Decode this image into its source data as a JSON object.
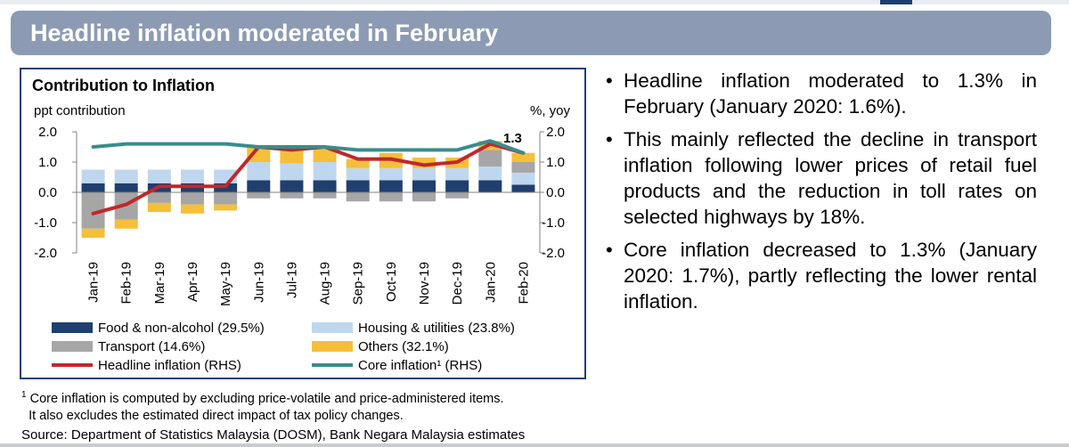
{
  "slide": {
    "title": "Headline inflation moderated in February"
  },
  "chart_data": {
    "type": "bar",
    "title": "Contribution to Inflation",
    "ylabel_left": "ppt contribution",
    "ylabel_right": "%, yoy",
    "ylim": [
      -2.0,
      2.0
    ],
    "y_ticks": [
      "2.0",
      "1.0",
      "0.0",
      "-1.0",
      "-2.0"
    ],
    "y_tick_values": [
      2.0,
      1.0,
      0.0,
      -1.0,
      -2.0
    ],
    "categories": [
      "Jan-19",
      "Feb-19",
      "Mar-19",
      "Apr-19",
      "May-19",
      "Jun-19",
      "Jul-19",
      "Aug-19",
      "Sep-19",
      "Oct-19",
      "Nov-19",
      "Dec-19",
      "Jan-20",
      "Feb-20"
    ],
    "stacked": true,
    "series": [
      {
        "name": "Food & non-alcohol (29.5%)",
        "kind": "bar",
        "color": "#1f3f6e",
        "values": [
          0.3,
          0.3,
          0.3,
          0.3,
          0.3,
          0.4,
          0.4,
          0.4,
          0.4,
          0.4,
          0.4,
          0.4,
          0.4,
          0.25
        ]
      },
      {
        "name": "Housing & utilities (23.8%)",
        "kind": "bar",
        "color": "#bfd7ee",
        "values": [
          0.45,
          0.45,
          0.45,
          0.45,
          0.45,
          0.6,
          0.55,
          0.6,
          0.4,
          0.4,
          0.4,
          0.4,
          0.45,
          0.4
        ]
      },
      {
        "name": "Transport (14.6%)",
        "kind": "bar",
        "color": "#a6a6a6",
        "values": [
          -1.2,
          -0.9,
          -0.35,
          -0.4,
          -0.4,
          -0.2,
          -0.2,
          -0.2,
          -0.3,
          -0.3,
          -0.3,
          -0.2,
          0.55,
          0.35
        ]
      },
      {
        "name": "Others (32.1%)",
        "kind": "bar",
        "color": "#f5bf3a",
        "values": [
          -0.3,
          -0.3,
          -0.3,
          -0.3,
          -0.2,
          0.5,
          0.5,
          0.5,
          0.3,
          0.5,
          0.35,
          0.35,
          0.3,
          0.3
        ]
      },
      {
        "name": "Headline inflation (RHS)",
        "kind": "line",
        "color": "#c0282b",
        "values": [
          -0.7,
          -0.4,
          0.2,
          0.2,
          0.2,
          1.5,
          1.4,
          1.5,
          1.1,
          1.1,
          0.9,
          1.0,
          1.6,
          1.3
        ]
      },
      {
        "name": "Core inflation¹ (RHS)",
        "kind": "line",
        "color": "#3a8c8c",
        "values": [
          1.5,
          1.6,
          1.6,
          1.6,
          1.6,
          1.5,
          1.5,
          1.5,
          1.4,
          1.4,
          1.4,
          1.4,
          1.7,
          1.3
        ]
      }
    ],
    "annotations": [
      {
        "text": "1.3",
        "category": "Feb-20"
      }
    ],
    "legend": "bottom",
    "grid": false
  },
  "footnote": {
    "mark": "1",
    "line1": "Core inflation is computed by excluding price-volatile and price-administered items.",
    "line2": "It also excludes the estimated direct impact of tax policy changes."
  },
  "source": "Source: Department of Statistics Malaysia (DOSM), Bank Negara Malaysia estimates",
  "bullets": [
    "Headline inflation moderated to 1.3% in February (January 2020: 1.6%).",
    "This mainly reflected the decline in transport inflation following lower prices of retail fuel products and the reduction in toll rates on selected highways by 18%.",
    "Core inflation decreased to 1.3% (January 2020: 1.7%), partly reflecting the lower rental inflation."
  ],
  "bullet_symbol": "•"
}
